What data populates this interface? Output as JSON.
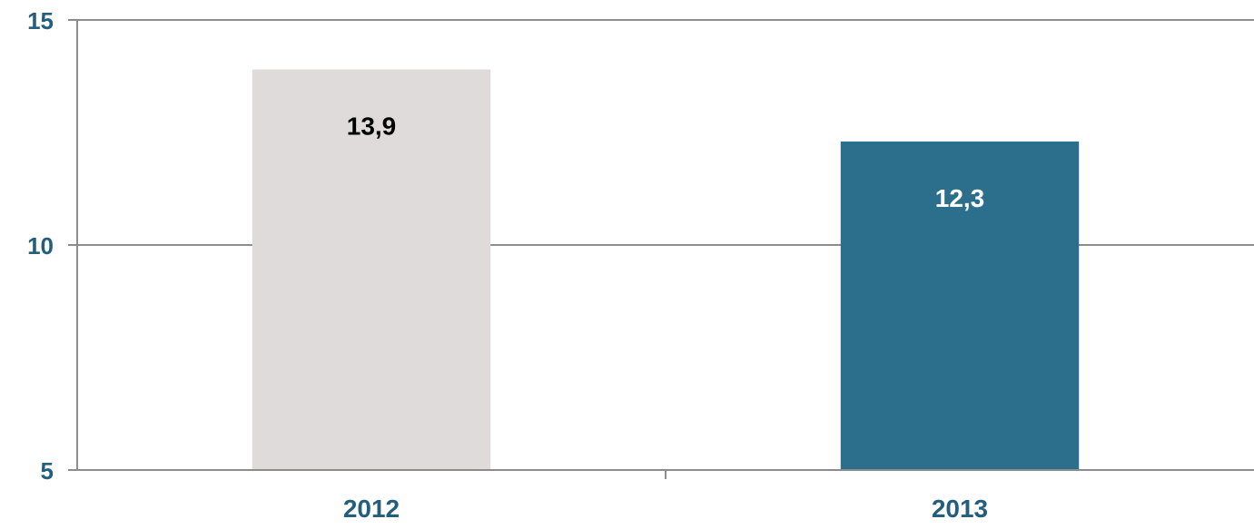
{
  "chart_data": {
    "type": "bar",
    "categories": [
      "2012",
      "2013"
    ],
    "values": [
      13.9,
      12.3
    ],
    "value_labels": [
      "13,9",
      "12,3"
    ],
    "ylim": [
      5,
      15
    ],
    "yticks": [
      5,
      10,
      15
    ],
    "ytick_labels": [
      "5",
      "10",
      "15"
    ],
    "grid": true,
    "legend": "none",
    "bar_colors": [
      "#e0dbdb",
      "#2c6f8c"
    ],
    "data_label_colors": [
      "#000000",
      "#ffffff"
    ],
    "axis_text_color": "#235f7c",
    "grid_color": "#8c8c8c"
  }
}
